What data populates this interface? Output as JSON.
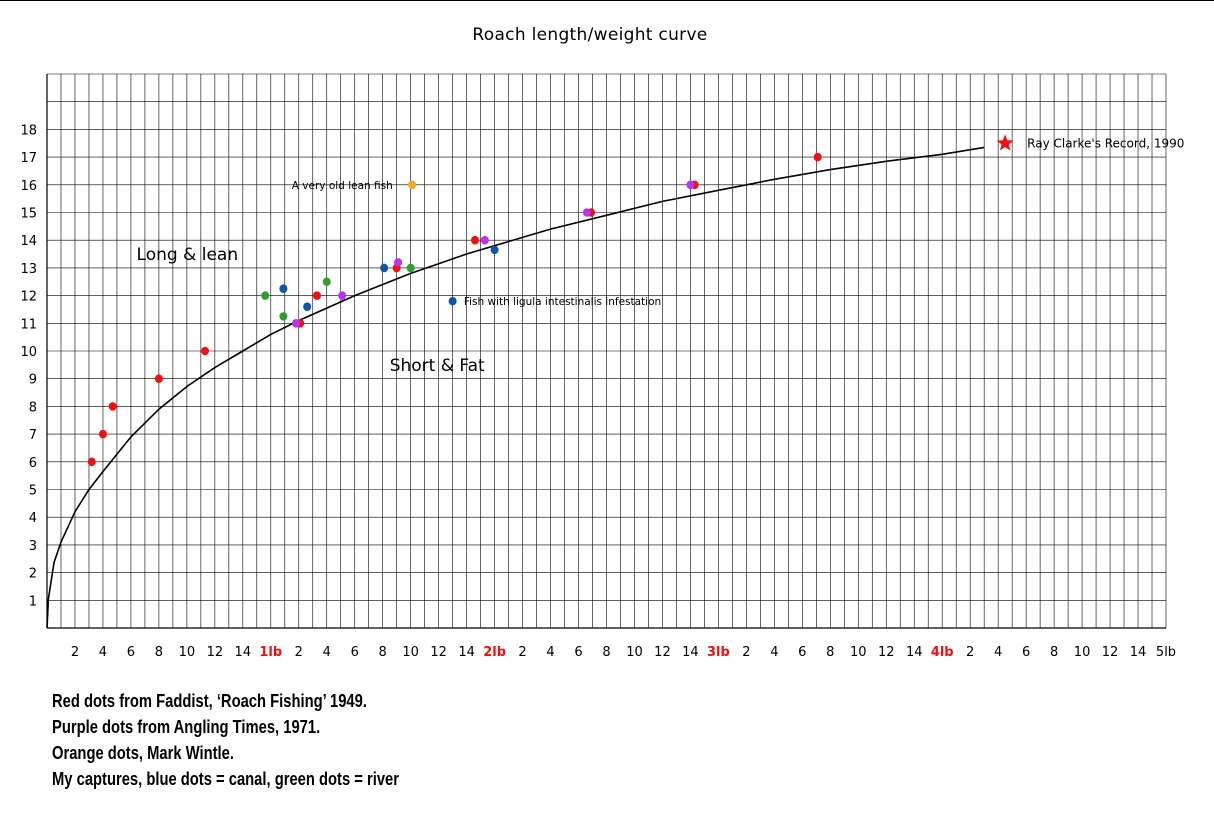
{
  "title": "Roach length/weight curve",
  "chart_data": {
    "type": "scatter",
    "title": "Roach length/weight curve",
    "xlabel": "",
    "ylabel": "",
    "x_unit": "oz",
    "xlim": [
      0,
      80
    ],
    "ylim": [
      0,
      20
    ],
    "grid": true,
    "y_ticks": [
      "1",
      "2",
      "3",
      "4",
      "5",
      "6",
      "7",
      "8",
      "9",
      "10",
      "11",
      "12",
      "13",
      "14",
      "15",
      "16",
      "17",
      "18"
    ],
    "x_ticks": [
      {
        "oz": 2,
        "label": "2"
      },
      {
        "oz": 4,
        "label": "4"
      },
      {
        "oz": 6,
        "label": "6"
      },
      {
        "oz": 8,
        "label": "8"
      },
      {
        "oz": 10,
        "label": "10"
      },
      {
        "oz": 12,
        "label": "12"
      },
      {
        "oz": 14,
        "label": "14"
      },
      {
        "oz": 16,
        "label": "1lb",
        "highlight": true
      },
      {
        "oz": 18,
        "label": "2"
      },
      {
        "oz": 20,
        "label": "4"
      },
      {
        "oz": 22,
        "label": "6"
      },
      {
        "oz": 24,
        "label": "8"
      },
      {
        "oz": 26,
        "label": "10"
      },
      {
        "oz": 28,
        "label": "12"
      },
      {
        "oz": 30,
        "label": "14"
      },
      {
        "oz": 32,
        "label": "2lb",
        "highlight": true
      },
      {
        "oz": 34,
        "label": "2"
      },
      {
        "oz": 36,
        "label": "4"
      },
      {
        "oz": 38,
        "label": "6"
      },
      {
        "oz": 40,
        "label": "8"
      },
      {
        "oz": 42,
        "label": "10"
      },
      {
        "oz": 44,
        "label": "12"
      },
      {
        "oz": 46,
        "label": "14"
      },
      {
        "oz": 48,
        "label": "3lb",
        "highlight": true
      },
      {
        "oz": 50,
        "label": "2"
      },
      {
        "oz": 52,
        "label": "4"
      },
      {
        "oz": 54,
        "label": "6"
      },
      {
        "oz": 56,
        "label": "8"
      },
      {
        "oz": 58,
        "label": "10"
      },
      {
        "oz": 60,
        "label": "12"
      },
      {
        "oz": 62,
        "label": "14"
      },
      {
        "oz": 64,
        "label": "4lb",
        "highlight": true
      },
      {
        "oz": 66,
        "label": "2"
      },
      {
        "oz": 68,
        "label": "4"
      },
      {
        "oz": 70,
        "label": "6"
      },
      {
        "oz": 72,
        "label": "8"
      },
      {
        "oz": 74,
        "label": "10"
      },
      {
        "oz": 76,
        "label": "12"
      },
      {
        "oz": 78,
        "label": "14"
      },
      {
        "oz": 80,
        "label": "5lb",
        "highlight": false
      }
    ],
    "curve": [
      [
        0.001,
        0
      ],
      [
        0.1,
        1.05
      ],
      [
        0.5,
        2.36
      ],
      [
        1,
        3.1
      ],
      [
        2,
        4.2
      ],
      [
        3,
        5.0
      ],
      [
        4,
        5.65
      ],
      [
        6,
        6.9
      ],
      [
        8,
        7.9
      ],
      [
        10,
        8.72
      ],
      [
        12,
        9.4
      ],
      [
        14,
        10.0
      ],
      [
        16,
        10.6
      ],
      [
        18,
        11.1
      ],
      [
        20,
        11.55
      ],
      [
        22,
        12.0
      ],
      [
        24,
        12.4
      ],
      [
        26,
        12.8
      ],
      [
        28,
        13.15
      ],
      [
        30,
        13.5
      ],
      [
        32,
        13.8
      ],
      [
        36,
        14.4
      ],
      [
        40,
        14.9
      ],
      [
        44,
        15.4
      ],
      [
        48,
        15.8
      ],
      [
        52,
        16.2
      ],
      [
        56,
        16.55
      ],
      [
        60,
        16.85
      ],
      [
        64,
        17.1
      ],
      [
        67,
        17.35
      ]
    ],
    "series": [
      {
        "name": "Red dots from Faddist, 'Roach Fishing' 1949",
        "color": "#ee1111",
        "points": [
          [
            3.2,
            6
          ],
          [
            4,
            7
          ],
          [
            4.7,
            8
          ],
          [
            8,
            9
          ],
          [
            11.3,
            10
          ],
          [
            18.1,
            11
          ],
          [
            19.3,
            12
          ],
          [
            25,
            13
          ],
          [
            30.6,
            14
          ],
          [
            38.9,
            15
          ],
          [
            46.3,
            16
          ],
          [
            55.1,
            17
          ]
        ]
      },
      {
        "name": "Purple dots from Angling Times, 1971",
        "color": "#bb33ee",
        "points": [
          [
            17.8,
            11
          ],
          [
            21.1,
            12
          ],
          [
            25.1,
            13.2
          ],
          [
            31.3,
            14
          ],
          [
            38.6,
            15
          ],
          [
            46,
            16
          ]
        ]
      },
      {
        "name": "Orange dots, Mark Wintle",
        "color": "#f5a623",
        "points": [
          [
            26.1,
            16
          ]
        ]
      },
      {
        "name": "canal",
        "color": "#1155aa",
        "points": [
          [
            16.9,
            12.25
          ],
          [
            18.6,
            11.6
          ],
          [
            24.1,
            13
          ],
          [
            32,
            13.65
          ],
          [
            29,
            11.8
          ]
        ]
      },
      {
        "name": "river",
        "color": "#2e9e2e",
        "points": [
          [
            15.6,
            12
          ],
          [
            16.9,
            11.25
          ],
          [
            20,
            12.5
          ],
          [
            26,
            13
          ]
        ]
      }
    ],
    "record": {
      "x": 68.5,
      "y": 17.5,
      "label": "Ray Clarke's Record, 1990",
      "color": "#ee1111"
    },
    "annotations": [
      {
        "text": "Long & lean",
        "x": 6.4,
        "y": 13.5,
        "size": "large"
      },
      {
        "text": "Short & Fat",
        "x": 24.5,
        "y": 9.5,
        "size": "large"
      },
      {
        "text": "A very old lean fish",
        "x": 17.5,
        "y": 16,
        "size": "small"
      },
      {
        "text": "Fish with ligula intestinalis infestation",
        "x": 29.8,
        "y": 11.8,
        "size": "small"
      }
    ]
  },
  "legend_lines": [
    "Red dots from Faddist, ‘Roach Fishing’ 1949.",
    "Purple dots from Angling Times, 1971.",
    "Orange dots, Mark Wintle.",
    "My captures, blue dots = canal, green dots = river"
  ]
}
